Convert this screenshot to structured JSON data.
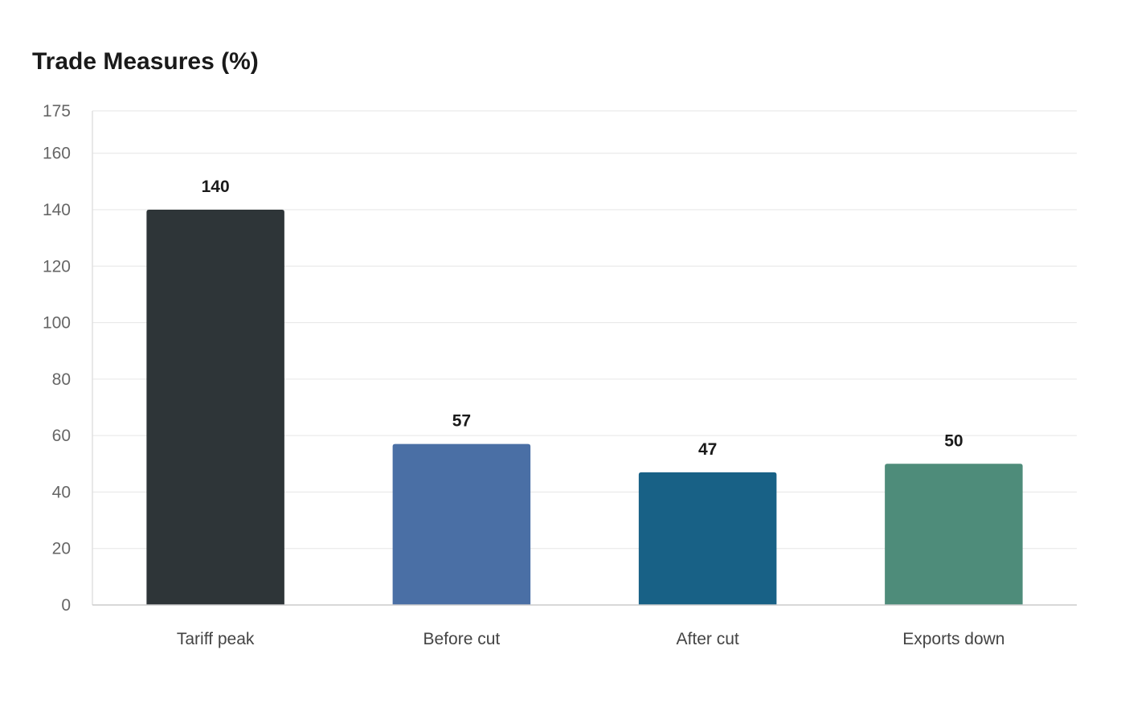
{
  "chart_data": {
    "type": "bar",
    "title": "Trade Measures (%)",
    "xlabel": "",
    "ylabel": "",
    "categories": [
      "Tariff peak",
      "Before cut",
      "After cut",
      "Exports down"
    ],
    "values": [
      140,
      57,
      47,
      50
    ],
    "value_labels": [
      "140",
      "57",
      "47",
      "50"
    ],
    "bar_colors": [
      "#2e3538",
      "#4a6fa5",
      "#186186",
      "#4e8c7a"
    ],
    "ylim": [
      0,
      175
    ],
    "yticks": [
      0,
      20,
      40,
      60,
      80,
      100,
      120,
      140,
      160,
      175
    ],
    "ytick_labels": [
      "0",
      "20",
      "40",
      "60",
      "80",
      "100",
      "120",
      "140",
      "160",
      "175"
    ],
    "grid": true,
    "legend": "none"
  }
}
